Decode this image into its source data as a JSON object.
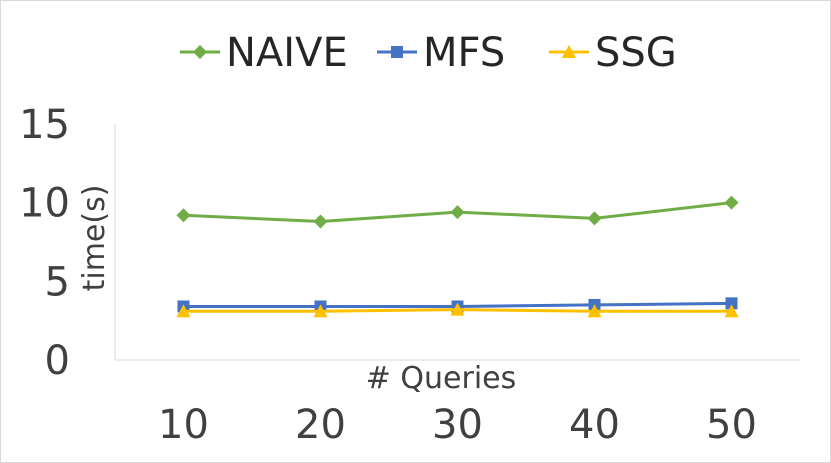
{
  "chart_data": {
    "type": "line",
    "title": "",
    "xlabel": "# Queries",
    "ylabel": "time(s)",
    "categories": [
      "10",
      "20",
      "30",
      "40",
      "50"
    ],
    "ylim": [
      0,
      15
    ],
    "yticks": [
      "0",
      "5",
      "10",
      "15"
    ],
    "grid": false,
    "legend_position": "top",
    "series": [
      {
        "name": "NAIVE",
        "color": "#70ad47",
        "marker": "diamond",
        "values": [
          9.2,
          8.8,
          9.4,
          9.0,
          10.0
        ]
      },
      {
        "name": "MFS",
        "color": "#4472c4",
        "marker": "square",
        "values": [
          3.4,
          3.4,
          3.4,
          3.5,
          3.6
        ]
      },
      {
        "name": "SSG",
        "color": "#ffc000",
        "marker": "triangle",
        "values": [
          3.1,
          3.1,
          3.2,
          3.1,
          3.1
        ]
      }
    ]
  }
}
